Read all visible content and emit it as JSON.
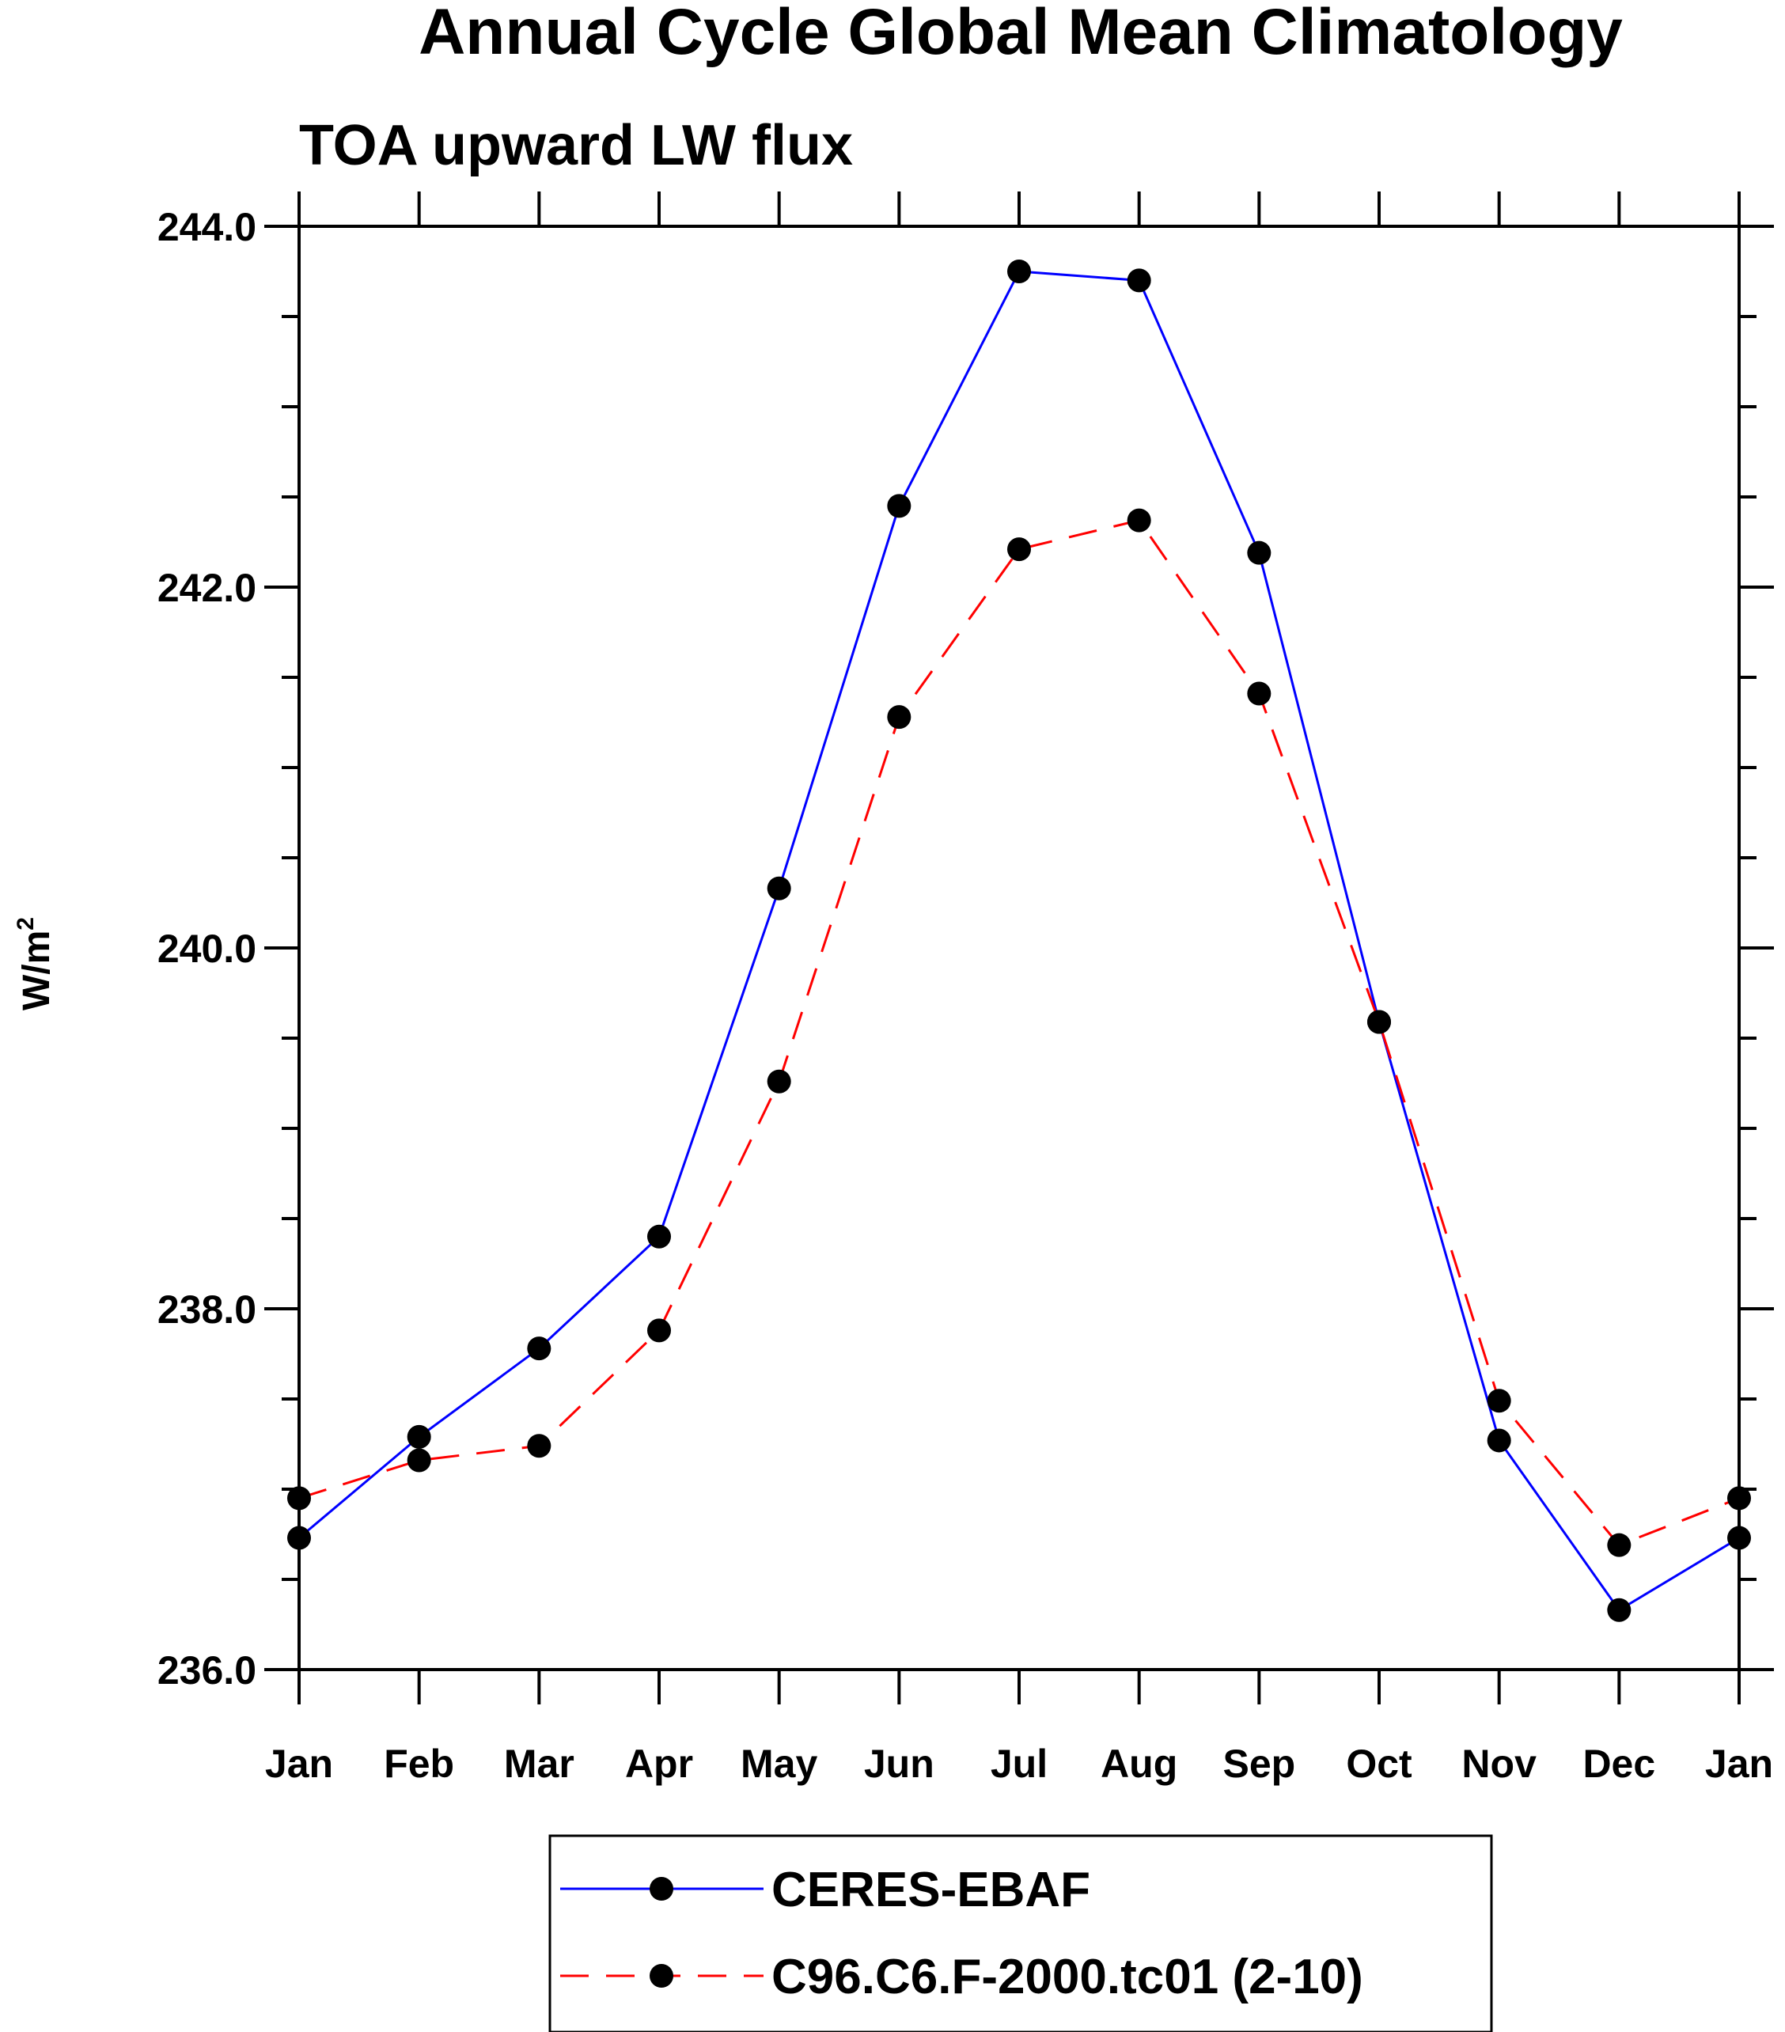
{
  "chart_data": {
    "type": "line",
    "title": "Annual Cycle Global Mean Climatology",
    "subtitle": "TOA upward LW flux",
    "xlabel": "",
    "ylabel": "W/m",
    "ylabel_superscript": "2",
    "categories": [
      "Jan",
      "Feb",
      "Mar",
      "Apr",
      "May",
      "Jun",
      "Jul",
      "Aug",
      "Sep",
      "Oct",
      "Nov",
      "Dec",
      "Jan"
    ],
    "ylim": [
      236.0,
      244.0
    ],
    "y_major_ticks": [
      236.0,
      238.0,
      240.0,
      242.0,
      244.0
    ],
    "y_tick_labels": [
      "236.0",
      "238.0",
      "240.0",
      "242.0",
      "244.0"
    ],
    "y_minor_step": 0.5,
    "grid": false,
    "legend_position": "bottom-center",
    "series": [
      {
        "name": "CERES-EBAF",
        "color": "#0000ff",
        "line_style": "solid",
        "marker": "filled-circle",
        "values": [
          236.73,
          237.29,
          237.78,
          238.4,
          240.33,
          242.45,
          243.75,
          243.7,
          242.19,
          239.59,
          237.27,
          236.33,
          236.73
        ]
      },
      {
        "name": "C96.C6.F-2000.tc01 (2-10)",
        "color": "#ff0000",
        "line_style": "dashed",
        "marker": "filled-circle",
        "values": [
          236.95,
          237.16,
          237.24,
          237.88,
          239.26,
          241.28,
          242.21,
          242.37,
          241.41,
          239.59,
          237.49,
          236.69,
          236.95
        ]
      }
    ]
  }
}
